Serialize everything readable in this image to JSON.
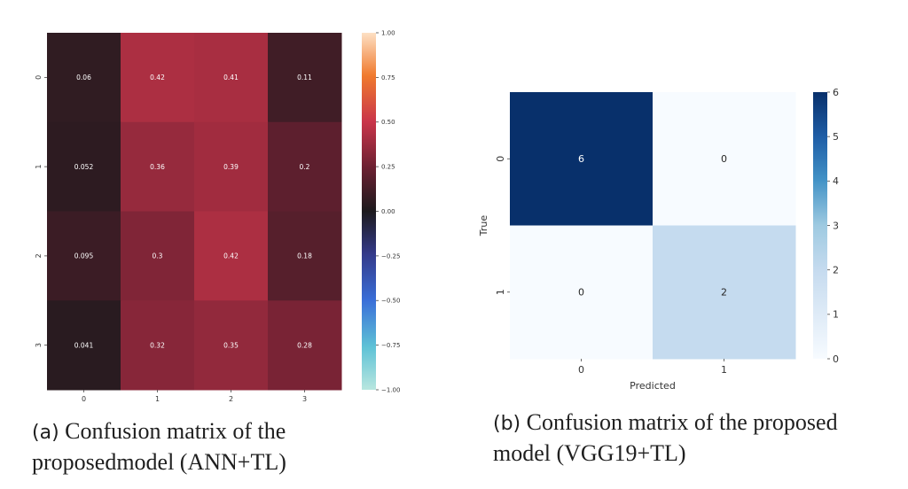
{
  "chart_data": [
    {
      "type": "heatmap",
      "rows": [
        "0",
        "1",
        "2",
        "3"
      ],
      "cols": [
        "0",
        "1",
        "2",
        "3"
      ],
      "values": [
        [
          0.06,
          0.42,
          0.41,
          0.11
        ],
        [
          0.052,
          0.36,
          0.39,
          0.2
        ],
        [
          0.095,
          0.3,
          0.42,
          0.18
        ],
        [
          0.041,
          0.32,
          0.35,
          0.28
        ]
      ],
      "cell_labels": [
        [
          "0.06",
          "0.42",
          "0.41",
          "0.11"
        ],
        [
          "0.052",
          "0.36",
          "0.39",
          "0.2"
        ],
        [
          "0.095",
          "0.3",
          "0.42",
          "0.18"
        ],
        [
          "0.041",
          "0.32",
          "0.35",
          "0.28"
        ]
      ],
      "colormap": "icefire",
      "vmin": -1.0,
      "vmax": 1.0,
      "colorbar_ticks": [
        "1.00",
        "0.75",
        "0.50",
        "0.25",
        "0.00",
        "−0.25",
        "−0.50",
        "−0.75",
        "−1.00"
      ],
      "xlabel": "",
      "ylabel": ""
    },
    {
      "type": "heatmap",
      "rows": [
        "0",
        "1"
      ],
      "cols": [
        "0",
        "1"
      ],
      "values": [
        [
          6,
          0
        ],
        [
          0,
          2
        ]
      ],
      "cell_labels": [
        [
          "6",
          "0"
        ],
        [
          "0",
          "2"
        ]
      ],
      "colormap": "Blues",
      "vmin": 0,
      "vmax": 6,
      "colorbar_ticks": [
        "6",
        "5",
        "4",
        "3",
        "2",
        "1",
        "0"
      ],
      "xlabel": "Predicted",
      "ylabel": "True"
    }
  ],
  "captions": {
    "a_tag": "(a)",
    "a_line1": " Confusion matrix of the",
    "a_line2": "proposedmodel (ANN+TL)",
    "b_tag": "(b)",
    "b_line1": " Confusion matrix of the proposed",
    "b_line2": "model (VGG19+TL)"
  }
}
